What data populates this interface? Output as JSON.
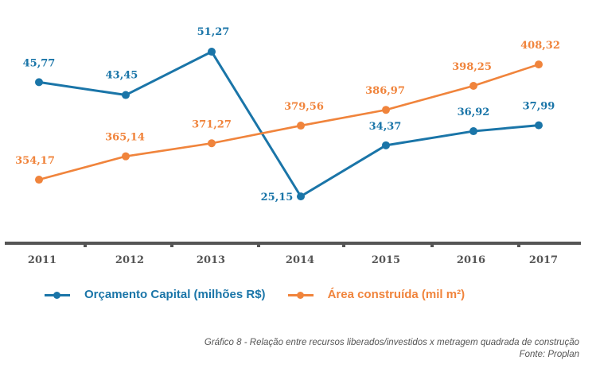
{
  "chart_data": {
    "type": "line",
    "title": "",
    "xlabel": "",
    "ylabel": "",
    "categories": [
      "2011",
      "2012",
      "2013",
      "2014",
      "2015",
      "2016",
      "2017"
    ],
    "grid": false,
    "legend_position": "bottom",
    "series": [
      {
        "name": "Orçamento Capital (milhões R$)",
        "color": "#1a75a8",
        "values": [
          45.77,
          43.45,
          51.27,
          25.15,
          34.37,
          36.92,
          37.99
        ],
        "labels": [
          "45,77",
          "43,45",
          "51,27",
          "25,15",
          "34,37",
          "36,92",
          "37,99"
        ],
        "ylim": [
          16.7,
          60.6
        ]
      },
      {
        "name": "Área construída (mil m²)",
        "color": "#f0843c",
        "values": [
          354.17,
          365.14,
          371.27,
          379.56,
          386.97,
          398.25,
          408.32
        ],
        "labels": [
          "354,17",
          "365,14",
          "371,27",
          "379,56",
          "386,97",
          "398,25",
          "408,32"
        ],
        "ylim": [
          324.3,
          438.6
        ]
      }
    ]
  },
  "legend": {
    "items": [
      {
        "label": "Orçamento Capital (milhões R$)",
        "color": "#1a75a8"
      },
      {
        "label": "Área construída (mil m²)",
        "color": "#f0843c"
      }
    ]
  },
  "caption": {
    "line1": "Gráfico 8 - Relação entre recursos liberados/investidos x metragem quadrada de construção",
    "line2": "Fonte: Proplan"
  },
  "colors": {
    "axis": "#555555",
    "tick_text": "#555555"
  }
}
